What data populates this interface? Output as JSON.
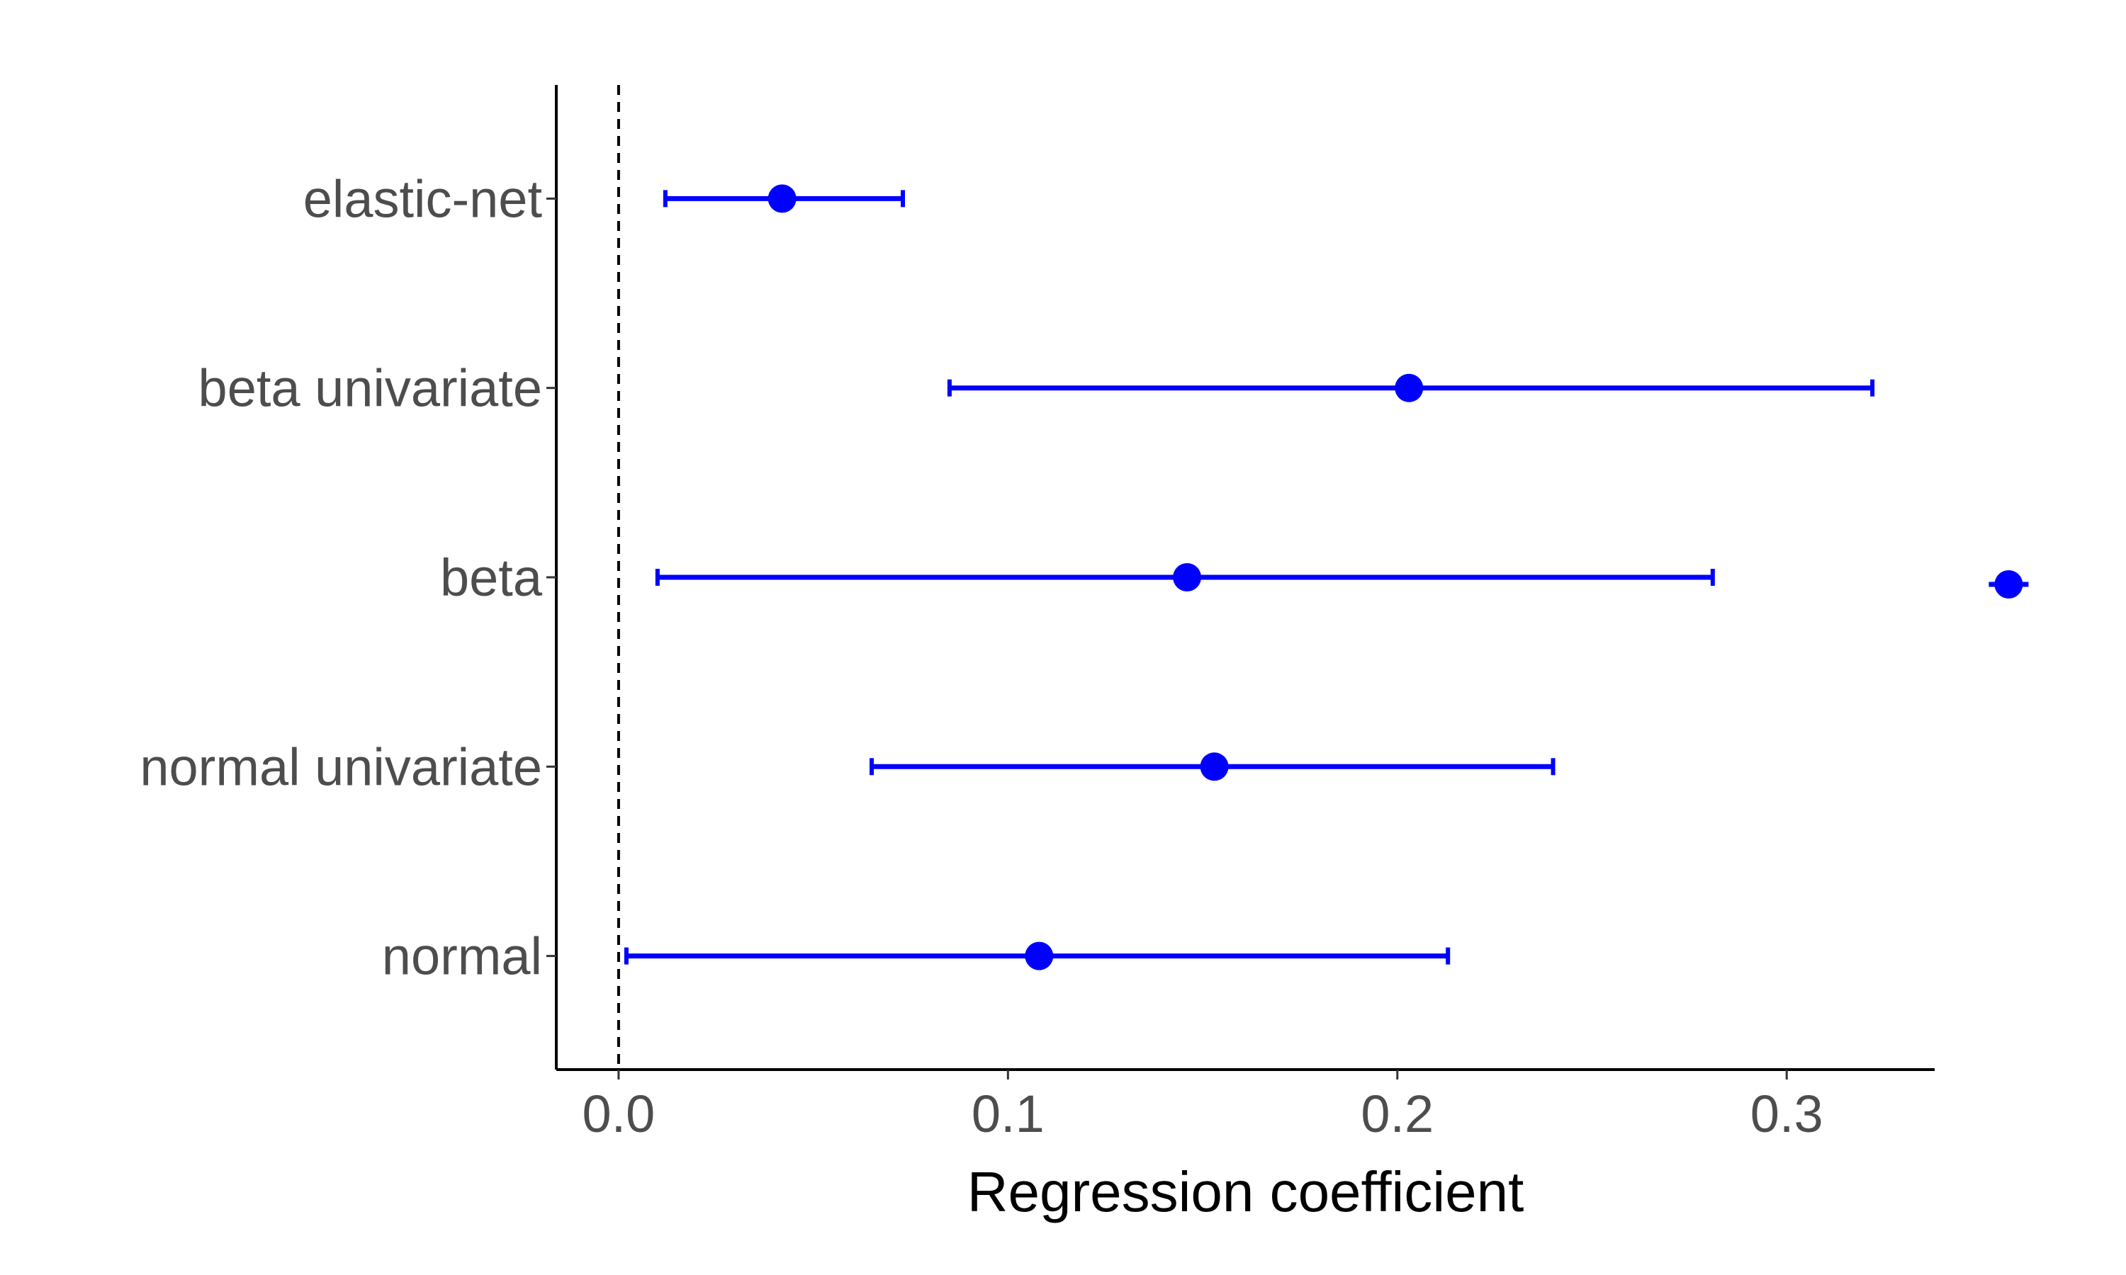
{
  "chart_data": {
    "type": "scatter",
    "subtype": "forest-plot",
    "title": "",
    "xlabel": "Regression coefficient",
    "ylabel": "",
    "xlim": [
      -0.016,
      0.338
    ],
    "x_ticks": [
      0.0,
      0.1,
      0.2,
      0.3
    ],
    "x_tick_labels": [
      "0.0",
      "0.1",
      "0.2",
      "0.3"
    ],
    "reference_line": {
      "x": 0.0,
      "style": "dashed"
    },
    "grid": false,
    "legend": "none",
    "color": "#0000ff",
    "categories": [
      "elastic-net",
      "beta univariate",
      "beta",
      "normal univariate",
      "normal"
    ],
    "estimates": [
      0.042,
      0.203,
      0.146,
      0.153,
      0.108
    ],
    "ci_lower": [
      0.012,
      0.085,
      0.01,
      0.065,
      0.002
    ],
    "ci_upper": [
      0.073,
      0.322,
      0.281,
      0.24,
      0.213
    ],
    "outlier_point": {
      "category": "beta",
      "x": 0.357
    }
  }
}
